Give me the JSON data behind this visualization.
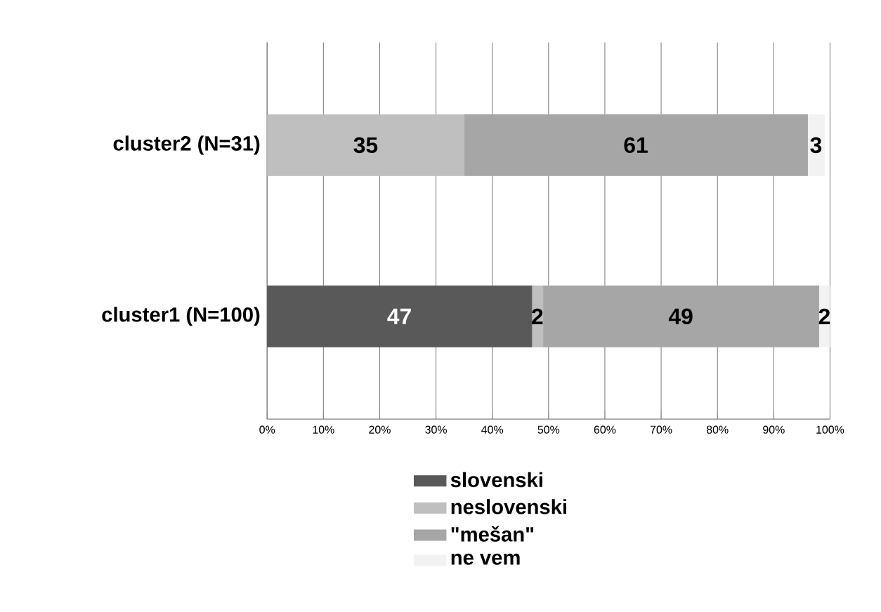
{
  "chart_data": {
    "type": "bar",
    "orientation": "horizontal",
    "stacked": true,
    "categories": [
      "cluster2 (N=31)",
      "cluster1 (N=100)"
    ],
    "series": [
      {
        "name": "slovenski",
        "color": "#595959",
        "values": [
          null,
          47
        ],
        "value_labels": [
          null,
          "47"
        ]
      },
      {
        "name": "neslovenski",
        "color": "#bfbfbf",
        "values": [
          35,
          2
        ],
        "value_labels": [
          "35",
          "2"
        ]
      },
      {
        "name": "\"mešan\"",
        "color": "#a6a6a6",
        "values": [
          61,
          49
        ],
        "value_labels": [
          "61",
          "49"
        ]
      },
      {
        "name": "ne vem",
        "color": "#f2f2f2",
        "values": [
          3,
          2
        ],
        "value_labels": [
          "3",
          "2"
        ]
      }
    ],
    "xlim": [
      0,
      100
    ],
    "xticks": [
      {
        "value": 0,
        "label": "0%"
      },
      {
        "value": 10,
        "label": "10%"
      },
      {
        "value": 20,
        "label": "20%"
      },
      {
        "value": 30,
        "label": "30%"
      },
      {
        "value": 40,
        "label": "40%"
      },
      {
        "value": 50,
        "label": "50%"
      },
      {
        "value": 60,
        "label": "60%"
      },
      {
        "value": 70,
        "label": "70%"
      },
      {
        "value": 80,
        "label": "80%"
      },
      {
        "value": 90,
        "label": "90%"
      },
      {
        "value": 100,
        "label": "100%"
      }
    ],
    "grid": "x",
    "legend": "bottom"
  }
}
